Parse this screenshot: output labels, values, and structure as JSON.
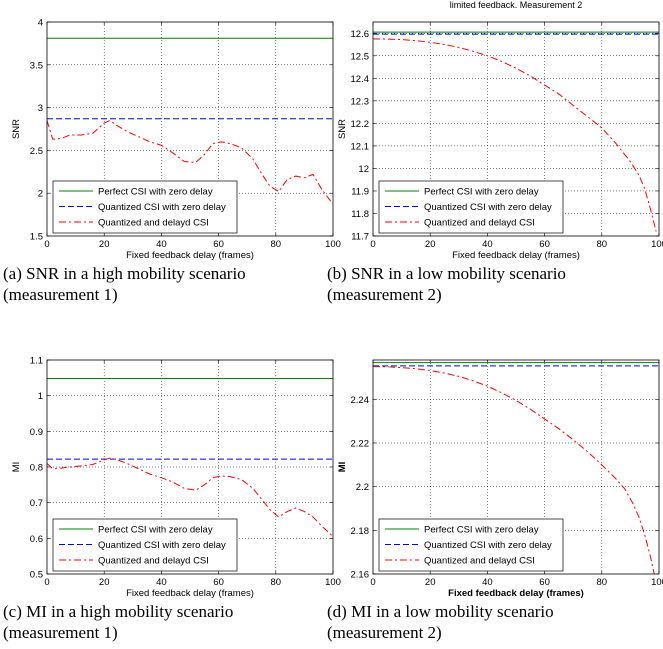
{
  "colors": {
    "perfect": "#008000",
    "quantized": "#0000ff",
    "delayed": "#ff0000"
  },
  "legend": {
    "perfect": "Perfect CSI with zero delay",
    "quantized": "Quantized CSI with zero delay",
    "delayed": "Quantized and delayd CSI"
  },
  "captions": {
    "a": [
      "(a) SNR in a high mobility scenario",
      "(measurement 1)"
    ],
    "b": [
      "(b) SNR in a low mobility scenario",
      "(measurement 2)"
    ],
    "c": [
      "(c) MI in a high mobility scenario",
      "(measurement 1)"
    ],
    "d": [
      "(d) MI in a low mobility scenario",
      "(measurement 2)"
    ]
  },
  "chart_data": [
    {
      "id": "a",
      "type": "line",
      "title": "",
      "xlabel": "Fixed feedback delay (frames)",
      "ylabel": "SNR",
      "xlim": [
        0,
        100
      ],
      "ylim": [
        1.5,
        4
      ],
      "xticks": [
        0,
        20,
        40,
        60,
        80,
        100
      ],
      "xtick_labels": [
        "0",
        "20",
        "40",
        "60",
        "80",
        "100"
      ],
      "yticks": [
        1.5,
        2,
        2.5,
        3,
        3.5,
        4
      ],
      "ytick_labels": [
        "1.5",
        "2",
        "2.5",
        "3",
        "3.5",
        "4"
      ],
      "grid": true,
      "legend_position": "bottom-left",
      "series": [
        {
          "key": "perfect",
          "style": "solid",
          "x": [
            0,
            100
          ],
          "y": [
            3.81,
            3.81
          ]
        },
        {
          "key": "quantized",
          "style": "dashed",
          "x": [
            0,
            100
          ],
          "y": [
            2.87,
            2.87
          ]
        },
        {
          "key": "delayed",
          "style": "dashdot",
          "x": [
            0,
            2,
            5,
            8,
            12,
            16,
            20,
            22,
            24,
            28,
            32,
            36,
            40,
            44,
            48,
            52,
            55,
            58,
            61,
            64,
            68,
            72,
            75,
            78,
            81,
            84,
            87,
            90,
            93,
            96,
            100
          ],
          "y": [
            2.85,
            2.63,
            2.64,
            2.68,
            2.68,
            2.7,
            2.82,
            2.85,
            2.8,
            2.72,
            2.66,
            2.6,
            2.56,
            2.47,
            2.37,
            2.36,
            2.45,
            2.58,
            2.6,
            2.58,
            2.53,
            2.4,
            2.23,
            2.08,
            2.02,
            2.16,
            2.2,
            2.18,
            2.22,
            2.05,
            1.87
          ]
        }
      ]
    },
    {
      "id": "b",
      "type": "line",
      "title": "limited feedback. Measurement 2",
      "xlabel": "Fixed feedback delay (frames)",
      "ylabel": "SNR",
      "xlim": [
        0,
        100
      ],
      "ylim": [
        11.7,
        12.65
      ],
      "xticks": [
        0,
        20,
        40,
        60,
        80,
        100
      ],
      "xtick_labels": [
        "0",
        "20",
        "40",
        "60",
        "80",
        "100"
      ],
      "yticks": [
        11.7,
        11.8,
        11.9,
        12,
        12.1,
        12.2,
        12.3,
        12.4,
        12.5,
        12.6
      ],
      "ytick_labels": [
        "11.7",
        "11.8",
        "11.9",
        "12",
        "12.1",
        "12.2",
        "12.3",
        "12.4",
        "12.5",
        "12.6"
      ],
      "grid": true,
      "legend_position": "bottom-left",
      "series": [
        {
          "key": "perfect",
          "style": "solid",
          "x": [
            0,
            100
          ],
          "y": [
            12.605,
            12.605
          ]
        },
        {
          "key": "quantized",
          "style": "dashed",
          "x": [
            0,
            100
          ],
          "y": [
            12.596,
            12.596
          ]
        },
        {
          "key": "delayed",
          "style": "dashdot",
          "x": [
            0,
            5,
            10,
            15,
            20,
            25,
            30,
            35,
            40,
            45,
            50,
            55,
            60,
            65,
            70,
            75,
            80,
            85,
            90,
            93,
            95,
            97,
            99
          ],
          "y": [
            12.575,
            12.574,
            12.572,
            12.567,
            12.56,
            12.55,
            12.537,
            12.52,
            12.5,
            12.475,
            12.445,
            12.41,
            12.37,
            12.33,
            12.28,
            12.23,
            12.18,
            12.11,
            12.03,
            11.97,
            11.91,
            11.82,
            11.72
          ]
        }
      ]
    },
    {
      "id": "c",
      "type": "line",
      "title": "",
      "xlabel": "Fixed feedback delay (frames)",
      "ylabel": "MI",
      "xlim": [
        0,
        100
      ],
      "ylim": [
        0.5,
        1.1
      ],
      "xticks": [
        0,
        20,
        40,
        60,
        80,
        100
      ],
      "xtick_labels": [
        "0",
        "20",
        "40",
        "60",
        "80",
        "100"
      ],
      "yticks": [
        0.5,
        0.6,
        0.7,
        0.8,
        0.9,
        1,
        1.1
      ],
      "ytick_labels": [
        "0.5",
        "0.6",
        "0.7",
        "0.8",
        "0.9",
        "1",
        "1.1"
      ],
      "grid": true,
      "legend_position": "bottom-left",
      "series": [
        {
          "key": "perfect",
          "style": "solid",
          "x": [
            0,
            100
          ],
          "y": [
            1.048,
            1.048
          ]
        },
        {
          "key": "quantized",
          "style": "dashed",
          "x": [
            0,
            100
          ],
          "y": [
            0.822,
            0.822
          ]
        },
        {
          "key": "delayed",
          "style": "dashdot",
          "x": [
            0,
            2,
            5,
            8,
            12,
            16,
            20,
            22,
            24,
            28,
            32,
            36,
            40,
            44,
            48,
            52,
            55,
            58,
            61,
            64,
            68,
            72,
            75,
            78,
            81,
            84,
            87,
            90,
            93,
            96,
            100
          ],
          "y": [
            0.81,
            0.795,
            0.797,
            0.8,
            0.803,
            0.807,
            0.82,
            0.825,
            0.822,
            0.81,
            0.795,
            0.78,
            0.77,
            0.758,
            0.74,
            0.735,
            0.75,
            0.77,
            0.775,
            0.773,
            0.765,
            0.74,
            0.71,
            0.68,
            0.66,
            0.675,
            0.685,
            0.675,
            0.66,
            0.635,
            0.605
          ]
        }
      ]
    },
    {
      "id": "d",
      "type": "line",
      "title": "",
      "xlabel": "Fixed feedback delay (frames)",
      "ylabel": "MI",
      "xlim": [
        0,
        100
      ],
      "ylim": [
        2.16,
        2.258
      ],
      "xticks": [
        0,
        20,
        40,
        60,
        80,
        100
      ],
      "xtick_labels": [
        "0",
        "20",
        "40",
        "60",
        "80",
        "100"
      ],
      "yticks": [
        2.16,
        2.18,
        2.2,
        2.22,
        2.24
      ],
      "ytick_labels": [
        "2.16",
        "2.18",
        "2.2",
        "2.22",
        "2.24"
      ],
      "grid": true,
      "legend_position": "bottom-left",
      "bold_axis_labels": true,
      "series": [
        {
          "key": "perfect",
          "style": "solid",
          "x": [
            0,
            100
          ],
          "y": [
            2.2568,
            2.2568
          ]
        },
        {
          "key": "quantized",
          "style": "dashed",
          "x": [
            0,
            100
          ],
          "y": [
            2.2553,
            2.2553
          ]
        },
        {
          "key": "delayed",
          "style": "dashdot",
          "x": [
            0,
            5,
            10,
            15,
            20,
            25,
            30,
            35,
            40,
            45,
            50,
            55,
            60,
            65,
            70,
            75,
            80,
            85,
            88,
            91,
            93,
            95,
            97,
            98.5
          ],
          "y": [
            2.255,
            2.2549,
            2.2545,
            2.254,
            2.2532,
            2.252,
            2.2505,
            2.2485,
            2.246,
            2.243,
            2.2395,
            2.2355,
            2.231,
            2.2265,
            2.2215,
            2.216,
            2.21,
            2.2035,
            2.199,
            2.192,
            2.186,
            2.178,
            2.168,
            2.159
          ]
        }
      ]
    }
  ]
}
